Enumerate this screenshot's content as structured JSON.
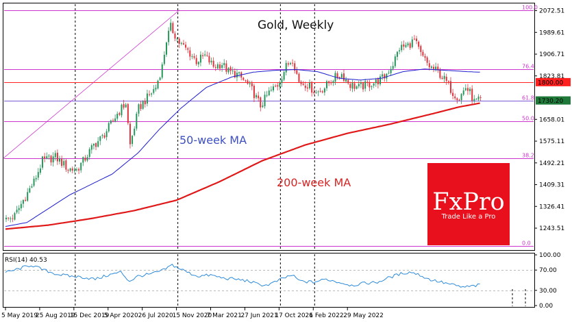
{
  "chart_data": {
    "type": "candlestick",
    "title": "Gold, Weekly",
    "brand": {
      "name": "FxPro",
      "tagline": "Trade Like a Pro",
      "color": "#e8101c"
    },
    "colors": {
      "up": "#25965a",
      "down": "#e0303a",
      "ma50": "#1c1ccf",
      "ma200": "#e01818",
      "fib": "#cc33cc",
      "level_1800": "#ff2020",
      "price_line": "#7b59d6",
      "current_price_label": "#1f7a3a"
    },
    "y_axis": {
      "range": [
        1160,
        2100
      ],
      "ticks": [
        "2072.51",
        "1989.61",
        "1906.71",
        "1823.81",
        "1658.01",
        "1575.11",
        "1492.21",
        "1409.31",
        "1326.41",
        "1243.51"
      ],
      "highlight_labels": [
        {
          "value": "1800.00",
          "price": 1800,
          "color": "#ff2020"
        },
        {
          "value": "1730.20",
          "price": 1730.2,
          "color": "#1f7a3a"
        }
      ]
    },
    "x_axis": {
      "tick_labels": [
        "5 May 2019",
        "25 Aug 2019",
        "15 Dec 2019",
        "5 Apr 2020",
        "26 Jul 2020",
        "15 Nov 2020",
        "7 Mar 2021",
        "27 Jun 2021",
        "17 Oct 2021",
        "6 Feb 2022",
        "29 May 2022"
      ],
      "period_separators": [
        "15 Dec 2019",
        "15 Nov 2020",
        "17 Oct 2021",
        "6 Feb 2022"
      ]
    },
    "fib_levels": [
      {
        "label": "100.0",
        "price": 2075
      },
      {
        "label": "76.4",
        "price": 1850
      },
      {
        "label": "61.8",
        "price": 1730
      },
      {
        "label": "50.0",
        "price": 1650
      },
      {
        "label": "38.2",
        "price": 1510
      },
      {
        "label": "0.0",
        "price": 1175
      }
    ],
    "horizontal_levels": [
      {
        "label": "1800.00",
        "price": 1800
      }
    ],
    "annotations": {
      "ma50_label": "50-week MA",
      "ma200_label": "200-week MA"
    },
    "price_keyframes": [
      [
        0,
        1275
      ],
      [
        4,
        1290
      ],
      [
        8,
        1350
      ],
      [
        13,
        1420
      ],
      [
        17,
        1500
      ],
      [
        23,
        1515
      ],
      [
        29,
        1470
      ],
      [
        33,
        1465
      ],
      [
        37,
        1510
      ],
      [
        41,
        1560
      ],
      [
        45,
        1590
      ],
      [
        49,
        1640
      ],
      [
        52,
        1680
      ],
      [
        56,
        1720
      ],
      [
        58,
        1560
      ],
      [
        62,
        1700
      ],
      [
        66,
        1740
      ],
      [
        70,
        1780
      ],
      [
        73,
        1860
      ],
      [
        75,
        1960
      ],
      [
        77,
        2010
      ],
      [
        81,
        1950
      ],
      [
        85,
        1920
      ],
      [
        89,
        1880
      ],
      [
        93,
        1900
      ],
      [
        97,
        1860
      ],
      [
        101,
        1870
      ],
      [
        104,
        1840
      ],
      [
        108,
        1830
      ],
      [
        112,
        1800
      ],
      [
        115,
        1770
      ],
      [
        117,
        1740
      ],
      [
        119,
        1710
      ],
      [
        123,
        1760
      ],
      [
        127,
        1790
      ],
      [
        131,
        1860
      ],
      [
        134,
        1890
      ],
      [
        137,
        1800
      ],
      [
        141,
        1790
      ],
      [
        145,
        1760
      ],
      [
        149,
        1780
      ],
      [
        153,
        1815
      ],
      [
        157,
        1830
      ],
      [
        161,
        1790
      ],
      [
        165,
        1780
      ],
      [
        169,
        1790
      ],
      [
        173,
        1800
      ],
      [
        177,
        1820
      ],
      [
        181,
        1870
      ],
      [
        184,
        1930
      ],
      [
        188,
        1940
      ],
      [
        191,
        1960
      ],
      [
        194,
        1905
      ],
      [
        198,
        1860
      ],
      [
        202,
        1840
      ],
      [
        206,
        1800
      ],
      [
        209,
        1760
      ],
      [
        212,
        1740
      ],
      [
        215,
        1780
      ],
      [
        217,
        1760
      ],
      [
        219,
        1725
      ],
      [
        222,
        1730
      ]
    ],
    "ma50": [
      [
        0,
        1250
      ],
      [
        10,
        1265
      ],
      [
        30,
        1370
      ],
      [
        50,
        1450
      ],
      [
        62,
        1530
      ],
      [
        72,
        1620
      ],
      [
        82,
        1700
      ],
      [
        94,
        1780
      ],
      [
        106,
        1820
      ],
      [
        116,
        1838
      ],
      [
        126,
        1845
      ],
      [
        136,
        1848
      ],
      [
        146,
        1840
      ],
      [
        156,
        1815
      ],
      [
        166,
        1808
      ],
      [
        176,
        1815
      ],
      [
        186,
        1840
      ],
      [
        196,
        1850
      ],
      [
        206,
        1845
      ],
      [
        216,
        1840
      ],
      [
        222,
        1838
      ]
    ],
    "ma200": [
      [
        0,
        1240
      ],
      [
        20,
        1255
      ],
      [
        40,
        1280
      ],
      [
        60,
        1310
      ],
      [
        80,
        1350
      ],
      [
        100,
        1420
      ],
      [
        120,
        1500
      ],
      [
        140,
        1560
      ],
      [
        160,
        1605
      ],
      [
        180,
        1640
      ],
      [
        200,
        1680
      ],
      [
        212,
        1705
      ],
      [
        222,
        1720
      ]
    ],
    "rsi": {
      "label": "RSI(14) 40.53",
      "period": 14,
      "value": 40.53,
      "levels": [
        70,
        30
      ],
      "axis_ticks": [
        "100.00",
        "70.00",
        "30.00",
        "0.00"
      ],
      "keyframes": [
        [
          0,
          65
        ],
        [
          6,
          72
        ],
        [
          12,
          80
        ],
        [
          18,
          70
        ],
        [
          24,
          62
        ],
        [
          30,
          58
        ],
        [
          36,
          56
        ],
        [
          42,
          52
        ],
        [
          48,
          60
        ],
        [
          54,
          66
        ],
        [
          58,
          48
        ],
        [
          62,
          58
        ],
        [
          68,
          62
        ],
        [
          74,
          70
        ],
        [
          78,
          80
        ],
        [
          82,
          72
        ],
        [
          86,
          64
        ],
        [
          90,
          58
        ],
        [
          96,
          60
        ],
        [
          102,
          54
        ],
        [
          108,
          52
        ],
        [
          114,
          48
        ],
        [
          118,
          42
        ],
        [
          122,
          40
        ],
        [
          126,
          46
        ],
        [
          130,
          54
        ],
        [
          134,
          60
        ],
        [
          138,
          48
        ],
        [
          144,
          46
        ],
        [
          150,
          52
        ],
        [
          156,
          46
        ],
        [
          162,
          40
        ],
        [
          168,
          44
        ],
        [
          174,
          46
        ],
        [
          180,
          56
        ],
        [
          186,
          64
        ],
        [
          190,
          66
        ],
        [
          194,
          60
        ],
        [
          198,
          52
        ],
        [
          202,
          48
        ],
        [
          206,
          44
        ],
        [
          210,
          40
        ],
        [
          214,
          36
        ],
        [
          218,
          38
        ],
        [
          222,
          40.5
        ]
      ]
    }
  }
}
